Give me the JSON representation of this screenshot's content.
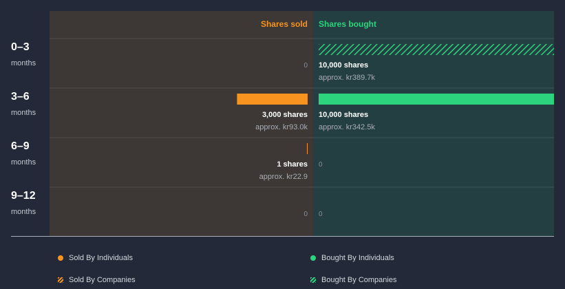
{
  "chart_data": {
    "type": "bar",
    "orientation": "horizontal",
    "headers": {
      "sold": "Shares sold",
      "bought": "Shares bought"
    },
    "colors": {
      "sold_individuals": "#f7931e",
      "sold_companies": "#f7931e",
      "bought_individuals": "#2bd47d",
      "bought_companies": "#2bd47d",
      "sold_panel": "#3d3735",
      "bought_panel": "#233f42"
    },
    "scale_max_shares": 10000,
    "rows": [
      {
        "period": "0–3",
        "unit": "months",
        "sold": {
          "shares": 0,
          "type": "none",
          "label": "0",
          "approx": ""
        },
        "bought": {
          "shares": 10000,
          "type": "companies",
          "label": "10,000 shares",
          "approx": "approx. kr389.7k"
        }
      },
      {
        "period": "3–6",
        "unit": "months",
        "sold": {
          "shares": 3000,
          "type": "individuals",
          "label": "3,000 shares",
          "approx": "approx. kr93.0k"
        },
        "bought": {
          "shares": 10000,
          "type": "individuals",
          "label": "10,000 shares",
          "approx": "approx. kr342.5k"
        }
      },
      {
        "period": "6–9",
        "unit": "months",
        "sold": {
          "shares": 1,
          "type": "individuals",
          "label": "1 shares",
          "approx": "approx. kr22.9"
        },
        "bought": {
          "shares": 0,
          "type": "none",
          "label": "0",
          "approx": ""
        }
      },
      {
        "period": "9–12",
        "unit": "months",
        "sold": {
          "shares": 0,
          "type": "none",
          "label": "0",
          "approx": ""
        },
        "bought": {
          "shares": 0,
          "type": "none",
          "label": "0",
          "approx": ""
        }
      }
    ],
    "legend": [
      {
        "label": "Sold By Individuals",
        "style": "dot",
        "series": "sold_individuals"
      },
      {
        "label": "Bought By Individuals",
        "style": "dot",
        "series": "bought_individuals"
      },
      {
        "label": "Sold By Companies",
        "style": "hatch",
        "series": "sold_companies"
      },
      {
        "label": "Bought By Companies",
        "style": "hatch",
        "series": "bought_companies"
      }
    ]
  }
}
